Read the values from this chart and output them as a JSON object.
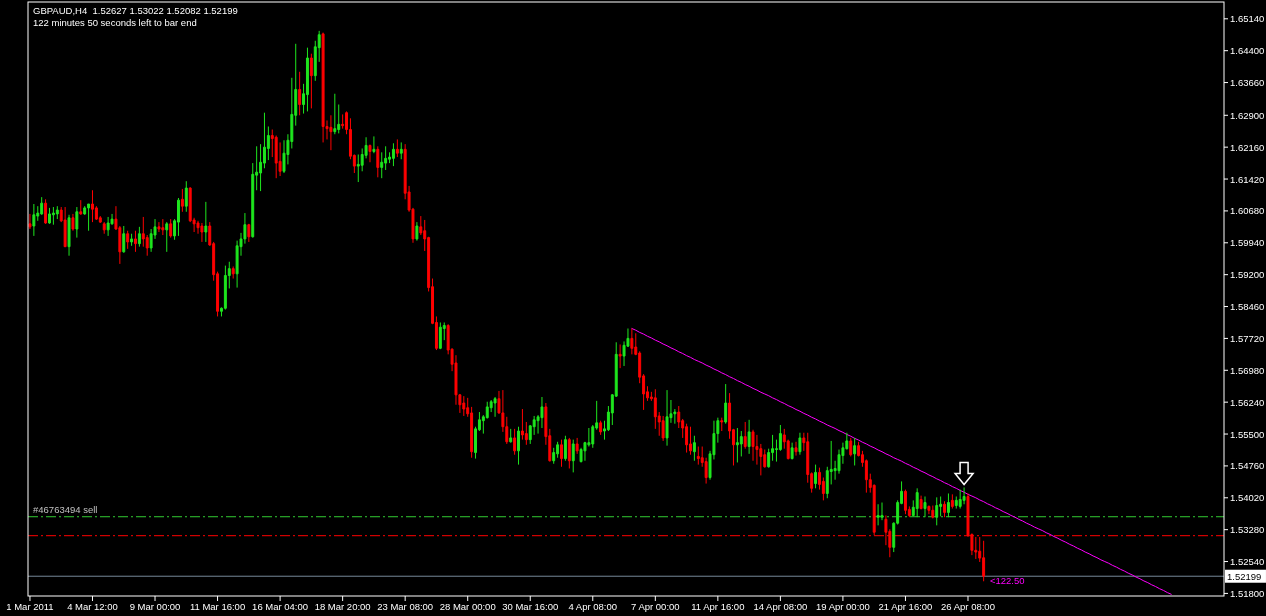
{
  "chart_data": {
    "type": "candlestick",
    "title": "GBPAUD,H4  1.52627 1.53022 1.52082 1.52199",
    "subtitle": "122 minutes 50 seconds left to bar end",
    "categories": [
      "1 Mar 2011",
      null,
      null,
      null,
      null,
      null,
      null,
      null,
      null,
      null,
      null,
      null,
      null,
      null,
      null,
      null,
      "4 Mar 12:00",
      null,
      null,
      null,
      null,
      null,
      null,
      null,
      null,
      null,
      null,
      null,
      null,
      null,
      null,
      null,
      "9 Mar 00:00",
      null,
      null,
      null,
      null,
      null,
      null,
      null,
      null,
      null,
      null,
      null,
      null,
      null,
      null,
      null,
      "11 Mar 16:00",
      null,
      null,
      null,
      null,
      null,
      null,
      null,
      null,
      null,
      null,
      null,
      null,
      null,
      null,
      null,
      "16 Mar 04:00",
      null,
      null,
      null,
      null,
      null,
      null,
      null,
      null,
      null,
      null,
      null,
      null,
      null,
      null,
      null,
      "18 Mar 20:00",
      null,
      null,
      null,
      null,
      null,
      null,
      null,
      null,
      null,
      null,
      null,
      null,
      null,
      null,
      null,
      "23 Mar 08:00",
      null,
      null,
      null,
      null,
      null,
      null,
      null,
      null,
      null,
      null,
      null,
      null,
      null,
      null,
      null,
      "28 Mar 00:00",
      null,
      null,
      null,
      null,
      null,
      null,
      null,
      null,
      null,
      null,
      null,
      null,
      null,
      null,
      null,
      "30 Mar 16:00",
      null,
      null,
      null,
      null,
      null,
      null,
      null,
      null,
      null,
      null,
      null,
      null,
      null,
      null,
      null,
      "4 Apr 08:00",
      null,
      null,
      null,
      null,
      null,
      null,
      null,
      null,
      null,
      null,
      null,
      null,
      null,
      null,
      null,
      "7 Apr 00:00",
      null,
      null,
      null,
      null,
      null,
      null,
      null,
      null,
      null,
      null,
      null,
      null,
      null,
      null,
      null,
      "11 Apr 16:00",
      null,
      null,
      null,
      null,
      null,
      null,
      null,
      null,
      null,
      null,
      null,
      null,
      null,
      null,
      null,
      "14 Apr 08:00",
      null,
      null,
      null,
      null,
      null,
      null,
      null,
      null,
      null,
      null,
      null,
      null,
      null,
      null,
      null,
      "19 Apr 00:00",
      null,
      null,
      null,
      null,
      null,
      null,
      null,
      null,
      null,
      null,
      null,
      null,
      null,
      null,
      null,
      "21 Apr 16:00",
      null,
      null,
      null,
      null,
      null,
      null,
      null,
      null,
      null,
      null,
      null,
      null,
      null,
      null,
      null,
      "26 Apr 08:00",
      null,
      null,
      null,
      null,
      null,
      null,
      null,
      null,
      null,
      null,
      null,
      null,
      null,
      null,
      null,
      null,
      null,
      null,
      null,
      null,
      null,
      null,
      null,
      null,
      null,
      null,
      null,
      null,
      null,
      null,
      null,
      null,
      null,
      null,
      null,
      null,
      null,
      null,
      null,
      null,
      null,
      null,
      null,
      null,
      null,
      null,
      null,
      null,
      null,
      null,
      null,
      null,
      null,
      null,
      null,
      null,
      null,
      null,
      null,
      null,
      null,
      null,
      null,
      null,
      null
    ],
    "ohlc": [
      [
        1.6038,
        1.6061,
        1.6026,
        1.6031
      ],
      [
        1.6033,
        1.6084,
        1.601,
        1.6059
      ],
      [
        1.6056,
        1.6079,
        1.6045,
        1.6063
      ],
      [
        1.6061,
        1.61,
        1.6059,
        1.6086
      ],
      [
        1.6086,
        1.6095,
        1.6038,
        1.604
      ],
      [
        1.604,
        1.6075,
        1.6038,
        1.6061
      ],
      [
        1.6059,
        1.6077,
        1.6036,
        1.6063
      ],
      [
        1.6061,
        1.6079,
        1.6049,
        1.607
      ],
      [
        1.607,
        1.6077,
        1.6042,
        1.6045
      ],
      [
        1.6047,
        1.6077,
        1.5984,
        1.5985
      ],
      [
        1.5985,
        1.6059,
        1.5964,
        1.6052
      ],
      [
        1.6052,
        1.6061,
        1.6022,
        1.6026
      ],
      [
        1.6026,
        1.6077,
        1.6006,
        1.6066
      ],
      [
        1.6066,
        1.6093,
        1.6059,
        1.6061
      ],
      [
        1.6061,
        1.6079,
        1.6059,
        1.6075
      ],
      [
        1.6075,
        1.6084,
        1.6022,
        1.6084
      ],
      [
        1.6084,
        1.6116,
        1.6042,
        1.6072
      ],
      [
        1.6075,
        1.6079,
        1.6047,
        1.6049
      ],
      [
        1.6052,
        1.6056,
        1.604,
        1.6042
      ],
      [
        1.6038,
        1.6042,
        1.6015,
        1.6024
      ],
      [
        1.6024,
        1.6054,
        1.601,
        1.604
      ],
      [
        1.6038,
        1.6061,
        1.6036,
        1.6049
      ],
      [
        1.6049,
        1.6079,
        1.6024,
        1.6026
      ],
      [
        1.6029,
        1.6033,
        1.5945,
        1.5973
      ],
      [
        1.5973,
        1.6033,
        1.5971,
        1.6015
      ],
      [
        1.6015,
        1.6022,
        1.598,
        1.5996
      ],
      [
        1.5996,
        1.6015,
        1.5987,
        1.6003
      ],
      [
        1.6003,
        1.6022,
        1.5973,
        1.5992
      ],
      [
        1.5992,
        1.6031,
        1.5985,
        1.6015
      ],
      [
        1.6015,
        1.6054,
        1.5985,
        1.6003
      ],
      [
        1.6006,
        1.6012,
        1.5964,
        1.5982
      ],
      [
        1.5982,
        1.6026,
        1.5973,
        1.6015
      ],
      [
        1.6012,
        1.6049,
        1.6003,
        1.6031
      ],
      [
        1.6031,
        1.6042,
        1.6019,
        1.6026
      ],
      [
        1.6029,
        1.6049,
        1.6012,
        1.6024
      ],
      [
        1.6024,
        1.6042,
        1.5973,
        1.6038
      ],
      [
        1.6038,
        1.6049,
        1.6006,
        1.601
      ],
      [
        1.601,
        1.6049,
        1.6001,
        1.6045
      ],
      [
        1.6042,
        1.6098,
        1.601,
        1.6093
      ],
      [
        1.6095,
        1.6119,
        1.6066,
        1.6079
      ],
      [
        1.6079,
        1.6137,
        1.6066,
        1.6121
      ],
      [
        1.6121,
        1.6123,
        1.6042,
        1.6045
      ],
      [
        1.6047,
        1.6052,
        1.6019,
        1.6038
      ],
      [
        1.604,
        1.6045,
        1.6015,
        1.6029
      ],
      [
        1.6033,
        1.604,
        1.5996,
        1.6019
      ],
      [
        1.6019,
        1.6089,
        1.5996,
        1.6033
      ],
      [
        1.6033,
        1.6042,
        1.5987,
        1.5989
      ],
      [
        1.5992,
        1.5996,
        1.5906,
        1.592
      ],
      [
        1.5922,
        1.5927,
        1.5823,
        1.5835
      ],
      [
        1.5835,
        1.5844,
        1.5823,
        1.5842
      ],
      [
        1.5842,
        1.5941,
        1.5839,
        1.5918
      ],
      [
        1.5918,
        1.595,
        1.5888,
        1.5934
      ],
      [
        1.5934,
        1.5939,
        1.5911,
        1.5922
      ],
      [
        1.5922,
        1.5999,
        1.589,
        1.5987
      ],
      [
        1.5985,
        1.6017,
        1.5964,
        1.6003
      ],
      [
        1.6003,
        1.6063,
        1.5992,
        1.6036
      ],
      [
        1.6036,
        1.6038,
        1.5996,
        1.6008
      ],
      [
        1.6008,
        1.6179,
        1.6006,
        1.6153
      ],
      [
        1.6151,
        1.6218,
        1.6116,
        1.6158
      ],
      [
        1.6156,
        1.6223,
        1.6114,
        1.6181
      ],
      [
        1.6179,
        1.6296,
        1.6167,
        1.6216
      ],
      [
        1.6213,
        1.6264,
        1.6186,
        1.6243
      ],
      [
        1.6243,
        1.6257,
        1.6193,
        1.6236
      ],
      [
        1.6239,
        1.6243,
        1.6144,
        1.6179
      ],
      [
        1.6183,
        1.6227,
        1.6149,
        1.616
      ],
      [
        1.616,
        1.6232,
        1.6156,
        1.6202
      ],
      [
        1.6199,
        1.6246,
        1.6176,
        1.6232
      ],
      [
        1.6229,
        1.6377,
        1.6213,
        1.6292
      ],
      [
        1.629,
        1.6456,
        1.6266,
        1.635
      ],
      [
        1.635,
        1.6391,
        1.629,
        1.6315
      ],
      [
        1.6315,
        1.6363,
        1.6294,
        1.634
      ],
      [
        1.6338,
        1.6447,
        1.6299,
        1.6423
      ],
      [
        1.6423,
        1.6433,
        1.6306,
        1.6382
      ],
      [
        1.6382,
        1.6463,
        1.637,
        1.6449
      ],
      [
        1.6447,
        1.6486,
        1.6414,
        1.6477
      ],
      [
        1.6479,
        1.6482,
        1.6227,
        1.6264
      ],
      [
        1.6264,
        1.6278,
        1.6234,
        1.6259
      ],
      [
        1.6262,
        1.629,
        1.6209,
        1.6252
      ],
      [
        1.6252,
        1.634,
        1.6246,
        1.6259
      ],
      [
        1.6257,
        1.6315,
        1.6248,
        1.6269
      ],
      [
        1.6269,
        1.6292,
        1.6259,
        1.6266
      ],
      [
        1.6296,
        1.6299,
        1.6246,
        1.6257
      ],
      [
        1.6257,
        1.6283,
        1.6188,
        1.6195
      ],
      [
        1.6197,
        1.6199,
        1.6156,
        1.6172
      ],
      [
        1.6172,
        1.6199,
        1.6135,
        1.6176
      ],
      [
        1.6174,
        1.6213,
        1.616,
        1.6199
      ],
      [
        1.6197,
        1.6239,
        1.619,
        1.622
      ],
      [
        1.622,
        1.6222,
        1.6181,
        1.6206
      ],
      [
        1.6206,
        1.6241,
        1.6202,
        1.6211
      ],
      [
        1.6211,
        1.6218,
        1.6146,
        1.6169
      ],
      [
        1.6169,
        1.6204,
        1.6144,
        1.6181
      ],
      [
        1.6179,
        1.6218,
        1.6163,
        1.619
      ],
      [
        1.6188,
        1.6204,
        1.6179,
        1.6193
      ],
      [
        1.619,
        1.6225,
        1.6172,
        1.6211
      ],
      [
        1.6211,
        1.6234,
        1.6193,
        1.6202
      ],
      [
        1.6202,
        1.6227,
        1.6188,
        1.6211
      ],
      [
        1.6211,
        1.6223,
        1.6095,
        1.6109
      ],
      [
        1.6112,
        1.6126,
        1.6066,
        1.607
      ],
      [
        1.6072,
        1.6075,
        1.5994,
        1.6003
      ],
      [
        1.6003,
        1.6042,
        1.5999,
        1.6033
      ],
      [
        1.6031,
        1.6056,
        1.6012,
        1.6017
      ],
      [
        1.6022,
        1.6047,
        1.5975,
        1.6003
      ],
      [
        1.6006,
        1.6008,
        1.5881,
        1.589
      ],
      [
        1.5892,
        1.5911,
        1.5805,
        1.5807
      ],
      [
        1.5809,
        1.5823,
        1.5745,
        1.5749
      ],
      [
        1.5749,
        1.5809,
        1.5747,
        1.5798
      ],
      [
        1.5795,
        1.5809,
        1.5768,
        1.5802
      ],
      [
        1.5802,
        1.5805,
        1.5735,
        1.5745
      ],
      [
        1.5747,
        1.5749,
        1.5696,
        1.5712
      ],
      [
        1.5715,
        1.5733,
        1.5618,
        1.5641
      ],
      [
        1.5641,
        1.5643,
        1.5599,
        1.5618
      ],
      [
        1.5622,
        1.5638,
        1.5592,
        1.5608
      ],
      [
        1.5611,
        1.5634,
        1.559,
        1.5597
      ],
      [
        1.5599,
        1.5613,
        1.5495,
        1.5509
      ],
      [
        1.5507,
        1.5567,
        1.5493,
        1.5562
      ],
      [
        1.556,
        1.5601,
        1.5557,
        1.5583
      ],
      [
        1.5581,
        1.5594,
        1.5551,
        1.559
      ],
      [
        1.5588,
        1.5625,
        1.5586,
        1.5613
      ],
      [
        1.5611,
        1.5629,
        1.5601,
        1.5625
      ],
      [
        1.5622,
        1.5636,
        1.559,
        1.5632
      ],
      [
        1.5632,
        1.565,
        1.5597,
        1.5599
      ],
      [
        1.5599,
        1.5652,
        1.5555,
        1.5567
      ],
      [
        1.5567,
        1.559,
        1.5527,
        1.5532
      ],
      [
        1.5532,
        1.5562,
        1.553,
        1.5541
      ],
      [
        1.5541,
        1.5562,
        1.5502,
        1.5511
      ],
      [
        1.5511,
        1.5567,
        1.5479,
        1.5557
      ],
      [
        1.5557,
        1.5608,
        1.5537,
        1.5548
      ],
      [
        1.5551,
        1.5578,
        1.5525,
        1.5537
      ],
      [
        1.5537,
        1.5571,
        1.5527,
        1.5569
      ],
      [
        1.5567,
        1.5592,
        1.5548,
        1.5583
      ],
      [
        1.5581,
        1.5594,
        1.5551,
        1.559
      ],
      [
        1.5588,
        1.5636,
        1.5564,
        1.5613
      ],
      [
        1.5613,
        1.5622,
        1.5525,
        1.5544
      ],
      [
        1.5546,
        1.5562,
        1.5486,
        1.5488
      ],
      [
        1.5488,
        1.5518,
        1.5481,
        1.5507
      ],
      [
        1.5504,
        1.5532,
        1.5495,
        1.5525
      ],
      [
        1.5525,
        1.5537,
        1.5474,
        1.5493
      ],
      [
        1.5493,
        1.5546,
        1.5488,
        1.5537
      ],
      [
        1.5537,
        1.5541,
        1.547,
        1.5488
      ],
      [
        1.5488,
        1.5537,
        1.5461,
        1.5527
      ],
      [
        1.5527,
        1.5541,
        1.5504,
        1.5511
      ],
      [
        1.5486,
        1.5518,
        1.5484,
        1.5514
      ],
      [
        1.5511,
        1.5532,
        1.5488,
        1.553
      ],
      [
        1.5525,
        1.5564,
        1.5521,
        1.553
      ],
      [
        1.5527,
        1.5571,
        1.5518,
        1.5567
      ],
      [
        1.5564,
        1.5627,
        1.556,
        1.5576
      ],
      [
        1.5576,
        1.5581,
        1.5548,
        1.5555
      ],
      [
        1.5557,
        1.5581,
        1.5537,
        1.5562
      ],
      [
        1.556,
        1.5615,
        1.5557,
        1.5601
      ],
      [
        1.5599,
        1.5643,
        1.5571,
        1.5641
      ],
      [
        1.5638,
        1.5763,
        1.5636,
        1.5735
      ],
      [
        1.5735,
        1.5758,
        1.5703,
        1.5731
      ],
      [
        1.5731,
        1.5765,
        1.5708,
        1.5756
      ],
      [
        1.5754,
        1.5795,
        1.5752,
        1.5772
      ],
      [
        1.5772,
        1.5795,
        1.5735,
        1.5749
      ],
      [
        1.5752,
        1.5784,
        1.5733,
        1.5735
      ],
      [
        1.5738,
        1.5742,
        1.5668,
        1.5682
      ],
      [
        1.5685,
        1.5689,
        1.5606,
        1.5643
      ],
      [
        1.5648,
        1.5661,
        1.5627,
        1.5634
      ],
      [
        1.5636,
        1.5648,
        1.5627,
        1.5632
      ],
      [
        1.5634,
        1.5654,
        1.5562,
        1.559
      ],
      [
        1.5592,
        1.5601,
        1.5546,
        1.5578
      ],
      [
        1.5581,
        1.5592,
        1.5534,
        1.5541
      ],
      [
        1.5541,
        1.5652,
        1.5523,
        1.559
      ],
      [
        1.5588,
        1.5629,
        1.5576,
        1.5597
      ],
      [
        1.5597,
        1.5608,
        1.5574,
        1.5601
      ],
      [
        1.5601,
        1.5615,
        1.5564,
        1.5578
      ],
      [
        1.5581,
        1.5585,
        1.5541,
        1.5564
      ],
      [
        1.5567,
        1.5574,
        1.5507,
        1.5525
      ],
      [
        1.5527,
        1.5567,
        1.5502,
        1.5511
      ],
      [
        1.5509,
        1.5546,
        1.5488,
        1.553
      ],
      [
        1.5498,
        1.5521,
        1.5479,
        1.5493
      ],
      [
        1.5495,
        1.5521,
        1.5474,
        1.5484
      ],
      [
        1.5486,
        1.5495,
        1.5435,
        1.5449
      ],
      [
        1.5449,
        1.5511,
        1.5444,
        1.5504
      ],
      [
        1.5502,
        1.5581,
        1.5491,
        1.5551
      ],
      [
        1.5551,
        1.5588,
        1.553,
        1.5581
      ],
      [
        1.5581,
        1.5588,
        1.5557,
        1.5578
      ],
      [
        1.5578,
        1.5666,
        1.5574,
        1.5622
      ],
      [
        1.5622,
        1.5645,
        1.5539,
        1.5557
      ],
      [
        1.556,
        1.5562,
        1.5477,
        1.5525
      ],
      [
        1.5525,
        1.5564,
        1.5484,
        1.553
      ],
      [
        1.5527,
        1.5557,
        1.5498,
        1.5544
      ],
      [
        1.5544,
        1.5578,
        1.5516,
        1.5521
      ],
      [
        1.5521,
        1.5583,
        1.5504,
        1.5555
      ],
      [
        1.5555,
        1.556,
        1.5488,
        1.5521
      ],
      [
        1.5521,
        1.5548,
        1.5479,
        1.5514
      ],
      [
        1.5516,
        1.5527,
        1.5454,
        1.5498
      ],
      [
        1.5502,
        1.5514,
        1.5472,
        1.5474
      ],
      [
        1.5474,
        1.5516,
        1.5472,
        1.5507
      ],
      [
        1.5507,
        1.5548,
        1.5488,
        1.5516
      ],
      [
        1.5514,
        1.5537,
        1.5486,
        1.5516
      ],
      [
        1.5514,
        1.5571,
        1.5511,
        1.5551
      ],
      [
        1.5548,
        1.5562,
        1.5516,
        1.5532
      ],
      [
        1.5534,
        1.5537,
        1.5491,
        1.5493
      ],
      [
        1.5493,
        1.553,
        1.5491,
        1.5518
      ],
      [
        1.5518,
        1.5532,
        1.55,
        1.5509
      ],
      [
        1.5509,
        1.5553,
        1.5502,
        1.5541
      ],
      [
        1.5541,
        1.5553,
        1.5511,
        1.553
      ],
      [
        1.5532,
        1.5553,
        1.5437,
        1.5456
      ],
      [
        1.5458,
        1.5461,
        1.5414,
        1.5424
      ],
      [
        1.5435,
        1.5479,
        1.5424,
        1.5461
      ],
      [
        1.5461,
        1.5472,
        1.5421,
        1.5433
      ],
      [
        1.544,
        1.5449,
        1.5396,
        1.5412
      ],
      [
        1.5412,
        1.5474,
        1.5401,
        1.5465
      ],
      [
        1.5463,
        1.5534,
        1.5433,
        1.5468
      ],
      [
        1.5465,
        1.5488,
        1.5444,
        1.547
      ],
      [
        1.5465,
        1.5514,
        1.5458,
        1.5502
      ],
      [
        1.55,
        1.553,
        1.5481,
        1.5518
      ],
      [
        1.5516,
        1.5553,
        1.5514,
        1.5534
      ],
      [
        1.5534,
        1.5541,
        1.5498,
        1.5502
      ],
      [
        1.5504,
        1.5541,
        1.5477,
        1.5523
      ],
      [
        1.5523,
        1.5532,
        1.5498,
        1.55
      ],
      [
        1.5502,
        1.5511,
        1.5474,
        1.5484
      ],
      [
        1.5488,
        1.5491,
        1.5414,
        1.5444
      ],
      [
        1.5444,
        1.5458,
        1.5414,
        1.5426
      ],
      [
        1.5431,
        1.5433,
        1.5315,
        1.5322
      ],
      [
        1.5357,
        1.5387,
        1.5338,
        1.5361
      ],
      [
        1.5357,
        1.5391,
        1.535,
        1.5361
      ],
      [
        1.5352,
        1.5361,
        1.5292,
        1.5322
      ],
      [
        1.5324,
        1.5329,
        1.5264,
        1.5287
      ],
      [
        1.5287,
        1.5345,
        1.5276,
        1.5343
      ],
      [
        1.5343,
        1.5396,
        1.534,
        1.5391
      ],
      [
        1.5389,
        1.544,
        1.5387,
        1.5417
      ],
      [
        1.5417,
        1.5421,
        1.5364,
        1.5373
      ],
      [
        1.5375,
        1.5382,
        1.5357,
        1.5361
      ],
      [
        1.5361,
        1.5396,
        1.5359,
        1.538
      ],
      [
        1.5377,
        1.5424,
        1.5357,
        1.5414
      ],
      [
        1.5398,
        1.5407,
        1.5375,
        1.5377
      ],
      [
        1.5377,
        1.5405,
        1.5357,
        1.5391
      ],
      [
        1.5382,
        1.5384,
        1.5364,
        1.5373
      ],
      [
        1.5373,
        1.5384,
        1.5354,
        1.5357
      ],
      [
        1.5357,
        1.5403,
        1.5338,
        1.5384
      ],
      [
        1.5382,
        1.5405,
        1.5359,
        1.5387
      ],
      [
        1.5387,
        1.5394,
        1.5357,
        1.5368
      ],
      [
        1.5368,
        1.5412,
        1.5357,
        1.5391
      ],
      [
        1.5396,
        1.541,
        1.5377,
        1.5382
      ],
      [
        1.5384,
        1.5405,
        1.5377,
        1.5396
      ],
      [
        1.5382,
        1.5421,
        1.5377,
        1.5398
      ],
      [
        1.5396,
        1.5426,
        1.5387,
        1.5405
      ],
      [
        1.5405,
        1.5412,
        1.5311,
        1.5315
      ],
      [
        1.5317,
        1.5319,
        1.5269,
        1.528
      ],
      [
        1.528,
        1.5311,
        1.526,
        1.5276
      ],
      [
        1.5278,
        1.5311,
        1.5253,
        1.5262
      ],
      [
        1.52627,
        1.53022,
        1.52082,
        1.52199
      ],
      null,
      null,
      null,
      null,
      null,
      null,
      null,
      null,
      null,
      null,
      null,
      null,
      null,
      null,
      null,
      null,
      null,
      null,
      null,
      null,
      null,
      null,
      null,
      null,
      null,
      null,
      null,
      null,
      null,
      null,
      null,
      null,
      null,
      null,
      null,
      null,
      null,
      null,
      null,
      null,
      null,
      null,
      null,
      null,
      null,
      null,
      null,
      null,
      null,
      null,
      null,
      null,
      null,
      null,
      null,
      null,
      null,
      null,
      null,
      null,
      null
    ],
    "ylim": [
      1.5174,
      1.6553
    ],
    "yticks": [
      {
        "value": 1.6514,
        "label": "1.65140"
      },
      {
        "value": 1.644,
        "label": "1.64400"
      },
      {
        "value": 1.6366,
        "label": "1.63660"
      },
      {
        "value": 1.629,
        "label": "1.62900"
      },
      {
        "value": 1.6216,
        "label": "1.62160"
      },
      {
        "value": 1.6142,
        "label": "1.61420"
      },
      {
        "value": 1.6068,
        "label": "1.60680"
      },
      {
        "value": 1.5994,
        "label": "1.59940"
      },
      {
        "value": 1.592,
        "label": "1.59200"
      },
      {
        "value": 1.5846,
        "label": "1.58460"
      },
      {
        "value": 1.5772,
        "label": "1.57720"
      },
      {
        "value": 1.5698,
        "label": "1.56980"
      },
      {
        "value": 1.5624,
        "label": "1.56240"
      },
      {
        "value": 1.555,
        "label": "1.55500"
      },
      {
        "value": 1.5476,
        "label": "1.54760"
      },
      {
        "value": 1.5402,
        "label": "1.54020"
      },
      {
        "value": 1.5328,
        "label": "1.53280"
      },
      {
        "value": 1.5254,
        "label": "1.52540"
      },
      {
        "value": 1.518,
        "label": "1.51800"
      }
    ],
    "series": [
      {
        "type": "line",
        "color": "#ff00ff",
        "values": [
          null,
          null,
          null,
          null,
          null,
          null,
          null,
          null,
          null,
          null,
          null,
          null,
          null,
          null,
          null,
          null,
          null,
          null,
          null,
          null,
          null,
          null,
          null,
          null,
          null,
          null,
          null,
          null,
          null,
          null,
          null,
          null,
          null,
          null,
          null,
          null,
          null,
          null,
          null,
          null,
          null,
          null,
          null,
          null,
          null,
          null,
          null,
          null,
          null,
          null,
          null,
          null,
          null,
          null,
          null,
          null,
          null,
          null,
          null,
          null,
          null,
          null,
          null,
          null,
          null,
          null,
          null,
          null,
          null,
          null,
          null,
          null,
          null,
          null,
          null,
          null,
          null,
          null,
          null,
          null,
          null,
          null,
          null,
          null,
          null,
          null,
          null,
          null,
          null,
          null,
          null,
          null,
          null,
          null,
          null,
          null,
          null,
          null,
          null,
          null,
          null,
          null,
          null,
          null,
          null,
          null,
          null,
          null,
          null,
          null,
          null,
          null,
          null,
          null,
          null,
          null,
          null,
          null,
          null,
          null,
          null,
          null,
          null,
          null,
          null,
          null,
          null,
          null,
          null,
          null,
          null,
          null,
          null,
          null,
          null,
          null,
          null,
          null,
          null,
          null,
          null,
          null,
          null,
          null,
          null,
          null,
          null,
          null,
          null,
          null,
          null,
          null,
          null,
          null,
          1.5795,
          1.5791,
          1.5786,
          1.5782,
          1.5777,
          1.5773,
          1.5768,
          1.5764,
          1.5759,
          1.5755,
          1.575,
          1.5746,
          1.5741,
          1.5737,
          1.5732,
          1.5728,
          1.5723,
          1.5719,
          1.5715,
          1.571,
          1.5706,
          1.5701,
          1.5697,
          1.5692,
          1.5688,
          1.5683,
          1.5679,
          1.5674,
          1.567,
          1.5665,
          1.5661,
          1.5656,
          1.5652,
          1.5647,
          1.5643,
          1.5639,
          1.5634,
          1.563,
          1.5625,
          1.5621,
          1.5616,
          1.5612,
          1.5607,
          1.5603,
          1.5598,
          1.5594,
          1.5589,
          1.5585,
          1.558,
          1.5576,
          1.5571,
          1.5567,
          1.5563,
          1.5558,
          1.5554,
          1.5549,
          1.5545,
          1.554,
          1.5536,
          1.5531,
          1.5527,
          1.5522,
          1.5518,
          1.5513,
          1.5509,
          1.5504,
          1.55,
          1.5495,
          1.5491,
          1.5487,
          1.5482,
          1.5478,
          1.5473,
          1.5469,
          1.5464,
          1.546,
          1.5455,
          1.5451,
          1.5446,
          1.5442,
          1.5437,
          1.5433,
          1.5428,
          1.5424,
          1.5419,
          1.5415,
          1.541,
          1.5406,
          1.5402,
          1.5397,
          1.5393,
          1.5388,
          1.5384,
          1.5379,
          1.5375,
          1.537,
          1.5366,
          1.5361,
          1.5357,
          1.5352,
          1.5348,
          1.5343,
          1.5339,
          1.5334,
          1.533,
          1.5326,
          1.5321,
          1.5317,
          1.5312,
          1.5308,
          1.5303,
          1.5299,
          1.5294,
          1.529,
          1.5285,
          1.5281,
          1.5276,
          1.5272,
          1.5267,
          1.5263,
          1.5258,
          1.5254,
          1.525,
          1.5245,
          1.5241,
          1.5236,
          1.5232,
          1.5227,
          1.5223,
          1.5218,
          1.5214,
          1.5209,
          1.5205,
          1.52,
          1.5196,
          1.5191,
          1.5187,
          1.5182,
          1.5178,
          null,
          null,
          null,
          null,
          null,
          null,
          null,
          null,
          null,
          null,
          null,
          null,
          null
        ]
      }
    ],
    "ref_lines": [
      {
        "axis": "y",
        "value": 1.5358,
        "label": "#46763494 sell",
        "color": "#32cd32",
        "line_style": "dashed"
      },
      {
        "axis": "y",
        "value": 1.5314,
        "color": "#ff0000",
        "line_style": "dashed"
      },
      {
        "axis": "y",
        "value": 1.52199,
        "label": "1.52199",
        "color": "#778899",
        "line_style": "solid"
      }
    ],
    "annotations": [
      {
        "text": "<122.50",
        "y": 1.521
      }
    ]
  }
}
